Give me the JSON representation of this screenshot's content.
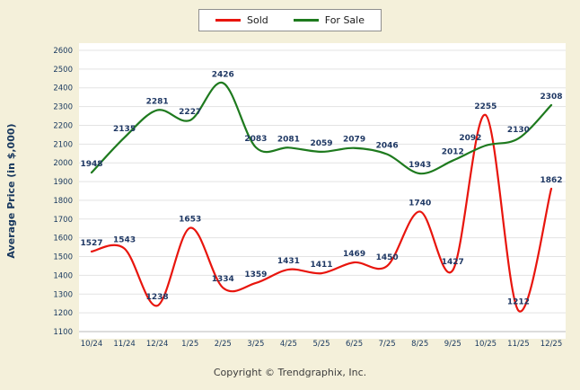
{
  "chart_data": {
    "type": "line",
    "title": "",
    "xlabel": "",
    "ylabel": "Average Price (in $,000)",
    "categories": [
      "10/24",
      "11/24",
      "12/24",
      "1/25",
      "2/25",
      "3/25",
      "4/25",
      "5/25",
      "6/25",
      "7/25",
      "8/25",
      "9/25",
      "10/25",
      "11/25",
      "12/25"
    ],
    "series": [
      {
        "name": "Sold",
        "color": "#e8150d",
        "values": [
          1527,
          1543,
          1238,
          1653,
          1334,
          1359,
          1431,
          1411,
          1469,
          1450,
          1740,
          1427,
          2255,
          1212,
          1862
        ]
      },
      {
        "name": "For Sale",
        "color": "#1e7a1e",
        "values": [
          1948,
          2135,
          2281,
          2227,
          2426,
          2083,
          2081,
          2059,
          2079,
          2046,
          1943,
          2012,
          2092,
          2130,
          2308
        ]
      }
    ],
    "ylim": [
      1100,
      2600
    ],
    "ytick_step": 100,
    "grid": true,
    "legend_position": "top",
    "label_offsets": {
      "For Sale": {
        "12": {
          "dx": -17,
          "dy": 1
        }
      }
    }
  },
  "footer": {
    "copyright": "Copyright © Trendgraphix, Inc."
  }
}
